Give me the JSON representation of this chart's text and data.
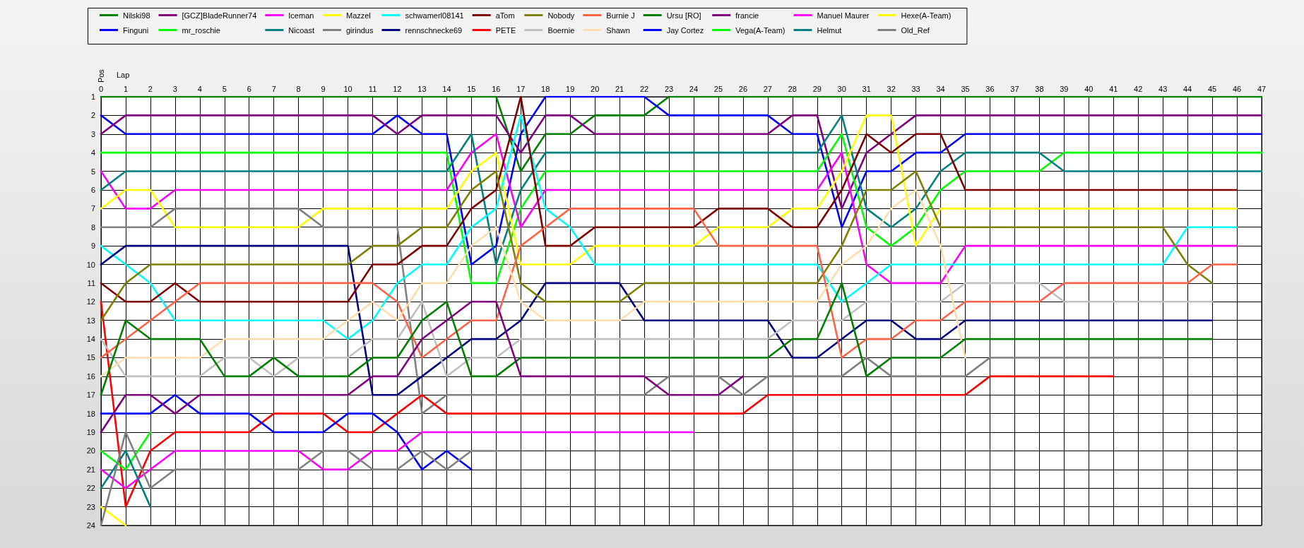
{
  "chart_data": {
    "type": "line",
    "xlabel": "Lap",
    "ylabel": "Pos",
    "x": [
      0,
      1,
      2,
      3,
      4,
      5,
      6,
      7,
      8,
      9,
      10,
      11,
      12,
      13,
      14,
      15,
      16,
      17,
      18,
      19,
      20,
      21,
      22,
      23,
      24,
      25,
      26,
      27,
      28,
      29,
      30,
      31,
      32,
      33,
      34,
      35,
      36,
      37,
      38,
      39,
      40,
      41,
      42,
      43,
      44,
      45,
      46,
      47
    ],
    "xlim": [
      0,
      47
    ],
    "xticks": [
      0,
      1,
      2,
      3,
      4,
      5,
      6,
      7,
      8,
      9,
      10,
      11,
      12,
      13,
      14,
      15,
      16,
      17,
      18,
      19,
      20,
      21,
      22,
      23,
      24,
      25,
      26,
      27,
      28,
      29,
      30,
      31,
      32,
      33,
      34,
      35,
      36,
      37,
      38,
      39,
      40,
      41,
      42,
      43,
      44,
      45,
      46,
      47
    ],
    "ylim": [
      24,
      1
    ],
    "yticks": [
      1,
      2,
      3,
      4,
      5,
      6,
      7,
      8,
      9,
      10,
      11,
      12,
      13,
      14,
      15,
      16,
      17,
      18,
      19,
      20,
      21,
      22,
      23,
      24
    ],
    "grid": true,
    "legend": "top",
    "marker": "none",
    "line_style": "solid",
    "series": [
      {
        "name": "Nilski98",
        "color": "#008000",
        "values": [
          1,
          1,
          1,
          1,
          1,
          1,
          1,
          1,
          1,
          1,
          1,
          1,
          1,
          1,
          1,
          1,
          1,
          5,
          3,
          3,
          2,
          2,
          2,
          1,
          1,
          1,
          1,
          1,
          1,
          1,
          1,
          1,
          1,
          1,
          1,
          1,
          1,
          1,
          1,
          1,
          1,
          1,
          1,
          1,
          1,
          1,
          1,
          1
        ]
      },
      {
        "name": "Finguni",
        "color": "#0000ff",
        "values": [
          2,
          3,
          3,
          3,
          3,
          3,
          3,
          3,
          3,
          3,
          3,
          3,
          2,
          3,
          3,
          10,
          9,
          3,
          1,
          1,
          1,
          1,
          1,
          2,
          2,
          2,
          2,
          2,
          3,
          3,
          8,
          5,
          5,
          4,
          4,
          3,
          3,
          3,
          3,
          3,
          3,
          3,
          3,
          3,
          3,
          3,
          3,
          3
        ]
      },
      {
        "name": "[GCZ]BladeRunner74",
        "color": "#800080",
        "values": [
          3,
          2,
          2,
          2,
          2,
          2,
          2,
          2,
          2,
          2,
          2,
          2,
          3,
          2,
          2,
          2,
          2,
          4,
          2,
          2,
          3,
          3,
          3,
          3,
          3,
          3,
          3,
          3,
          2,
          2,
          7,
          4,
          3,
          2,
          2,
          2,
          2,
          2,
          2,
          2,
          2,
          2,
          2,
          2,
          2,
          2,
          2,
          2
        ]
      },
      {
        "name": "mr_roschie",
        "color": "#00ff00",
        "values": [
          4,
          4,
          4,
          4,
          4,
          4,
          4,
          4,
          4,
          4,
          4,
          4,
          4,
          4,
          4,
          11,
          11,
          7,
          5,
          5,
          5,
          5,
          5,
          5,
          5,
          5,
          5,
          5,
          5,
          5,
          3,
          8,
          9,
          8,
          6,
          5,
          5,
          5,
          5,
          4,
          4,
          4,
          4,
          4,
          4,
          4,
          4,
          4
        ]
      },
      {
        "name": "Iceman",
        "color": "#ff00ff",
        "values": [
          5,
          7,
          7,
          6,
          6,
          6,
          6,
          6,
          6,
          6,
          6,
          6,
          6,
          6,
          6,
          4,
          3,
          8,
          6,
          6,
          6,
          6,
          6,
          6,
          6,
          6,
          6,
          6,
          6,
          6,
          4,
          10,
          11,
          11,
          11,
          9,
          9,
          9,
          9,
          9,
          9,
          9,
          9,
          9,
          9,
          9,
          9,
          null
        ]
      },
      {
        "name": "Nicoast",
        "color": "#008080",
        "values": [
          6,
          5,
          5,
          5,
          5,
          5,
          5,
          5,
          5,
          5,
          5,
          5,
          5,
          5,
          5,
          3,
          10,
          6,
          4,
          4,
          4,
          4,
          4,
          4,
          4,
          4,
          4,
          4,
          4,
          4,
          2,
          7,
          8,
          7,
          5,
          4,
          4,
          4,
          4,
          5,
          5,
          5,
          5,
          5,
          5,
          5,
          5,
          5
        ]
      },
      {
        "name": "Mazzel",
        "color": "#ffff00",
        "values": [
          7,
          6,
          6,
          8,
          8,
          8,
          8,
          8,
          8,
          7,
          7,
          7,
          7,
          7,
          7,
          5,
          4,
          10,
          10,
          10,
          9,
          9,
          9,
          9,
          9,
          8,
          8,
          8,
          7,
          7,
          5,
          2,
          2,
          9,
          7,
          7,
          7,
          7,
          7,
          7,
          7,
          7,
          7,
          7,
          7,
          7,
          7,
          null
        ]
      },
      {
        "name": "girindus",
        "color": "#808080",
        "values": [
          8,
          8,
          8,
          7,
          7,
          7,
          7,
          7,
          7,
          8,
          8,
          8,
          8,
          18,
          17,
          17,
          17,
          17,
          17,
          17,
          17,
          17,
          17,
          16,
          16,
          16,
          17,
          16,
          16,
          16,
          16,
          15,
          16,
          16,
          16,
          16,
          15,
          15,
          15,
          15,
          15,
          15,
          15,
          15,
          null,
          null,
          null,
          null
        ]
      },
      {
        "name": "schwamerl08141",
        "color": "#00ffff",
        "values": [
          9,
          10,
          11,
          13,
          13,
          13,
          13,
          13,
          13,
          13,
          14,
          13,
          11,
          10,
          10,
          8,
          7,
          2,
          7,
          8,
          10,
          10,
          10,
          10,
          10,
          10,
          10,
          10,
          10,
          10,
          12,
          11,
          10,
          10,
          10,
          10,
          10,
          10,
          10,
          10,
          10,
          10,
          10,
          10,
          8,
          8,
          8,
          null
        ]
      },
      {
        "name": "rennschnecke69",
        "color": "#000080",
        "values": [
          10,
          9,
          9,
          9,
          9,
          9,
          9,
          9,
          9,
          9,
          9,
          17,
          17,
          16,
          15,
          14,
          14,
          13,
          11,
          11,
          11,
          11,
          13,
          13,
          13,
          13,
          13,
          13,
          15,
          15,
          14,
          13,
          13,
          14,
          14,
          13,
          13,
          13,
          13,
          13,
          13,
          13,
          13,
          13,
          13,
          13,
          null,
          null
        ]
      },
      {
        "name": "aTom",
        "color": "#800000",
        "values": [
          11,
          12,
          12,
          11,
          12,
          12,
          12,
          12,
          12,
          12,
          12,
          10,
          10,
          9,
          9,
          7,
          6,
          1,
          9,
          9,
          8,
          8,
          8,
          8,
          8,
          7,
          7,
          7,
          8,
          8,
          6,
          3,
          4,
          3,
          3,
          6,
          6,
          6,
          6,
          6,
          6,
          6,
          6,
          6,
          6,
          6,
          6,
          null
        ]
      },
      {
        "name": "PETE",
        "color": "#ff0000",
        "values": [
          12,
          23,
          20,
          19,
          19,
          19,
          19,
          18,
          18,
          18,
          19,
          19,
          18,
          17,
          18,
          18,
          18,
          18,
          18,
          18,
          18,
          18,
          18,
          18,
          18,
          18,
          18,
          17,
          17,
          17,
          17,
          17,
          17,
          17,
          17,
          17,
          16,
          16,
          16,
          16,
          16,
          16,
          null,
          null,
          null,
          null,
          null,
          null
        ]
      },
      {
        "name": "Nobody",
        "color": "#808000",
        "values": [
          13,
          11,
          10,
          10,
          10,
          10,
          10,
          10,
          10,
          10,
          10,
          9,
          9,
          8,
          8,
          6,
          5,
          11,
          12,
          12,
          12,
          12,
          11,
          11,
          11,
          11,
          11,
          11,
          11,
          11,
          9,
          6,
          6,
          5,
          8,
          8,
          8,
          8,
          8,
          8,
          8,
          8,
          8,
          8,
          10,
          11,
          null,
          null
        ]
      },
      {
        "name": "Boernie",
        "color": "#c0c0c0",
        "values": [
          14,
          16,
          16,
          16,
          16,
          15,
          15,
          16,
          15,
          15,
          15,
          14,
          14,
          12,
          16,
          15,
          15,
          14,
          14,
          14,
          14,
          14,
          14,
          14,
          14,
          14,
          14,
          14,
          13,
          13,
          13,
          12,
          12,
          12,
          12,
          11,
          11,
          11,
          11,
          12,
          12,
          12,
          12,
          12,
          12,
          12,
          null,
          null
        ]
      },
      {
        "name": "Burnie J",
        "color": "#ff6347",
        "values": [
          15,
          14,
          13,
          12,
          11,
          11,
          11,
          11,
          11,
          11,
          11,
          11,
          12,
          15,
          14,
          13,
          13,
          9,
          8,
          7,
          7,
          7,
          7,
          7,
          7,
          9,
          9,
          9,
          9,
          9,
          15,
          14,
          14,
          13,
          13,
          12,
          12,
          12,
          12,
          11,
          11,
          11,
          11,
          11,
          11,
          10,
          10,
          null
        ]
      },
      {
        "name": "Shawn",
        "color": "#ffdead",
        "values": [
          16,
          15,
          15,
          15,
          15,
          14,
          14,
          14,
          14,
          14,
          13,
          12,
          13,
          11,
          11,
          9,
          8,
          12,
          13,
          13,
          13,
          13,
          12,
          12,
          12,
          12,
          12,
          12,
          12,
          12,
          10,
          9,
          7,
          6,
          9,
          15,
          null,
          null,
          null,
          null,
          null,
          null,
          null,
          null,
          null,
          null,
          null,
          null
        ]
      },
      {
        "name": "Ursu [RO]",
        "color": "#008000",
        "values": [
          17,
          13,
          14,
          14,
          14,
          16,
          16,
          15,
          16,
          16,
          16,
          15,
          15,
          13,
          12,
          16,
          16,
          15,
          15,
          15,
          15,
          15,
          15,
          15,
          15,
          15,
          15,
          15,
          14,
          14,
          11,
          16,
          15,
          15,
          15,
          14,
          14,
          14,
          14,
          14,
          14,
          14,
          14,
          14,
          14,
          14,
          null,
          null
        ]
      },
      {
        "name": "Jay Cortez",
        "color": "#0000ff",
        "values": [
          18,
          18,
          18,
          17,
          18,
          18,
          18,
          19,
          19,
          19,
          18,
          18,
          19,
          21,
          20,
          21,
          null,
          null,
          null,
          null,
          null,
          null,
          null,
          null,
          null,
          null,
          null,
          null,
          null,
          null,
          null,
          null,
          null,
          null,
          null,
          null,
          null,
          null,
          null,
          null,
          null,
          null,
          null,
          null,
          null,
          null,
          null,
          null
        ]
      },
      {
        "name": "francie",
        "color": "#800080",
        "values": [
          19,
          17,
          17,
          18,
          17,
          17,
          17,
          17,
          17,
          17,
          17,
          16,
          16,
          14,
          13,
          12,
          12,
          16,
          16,
          16,
          16,
          16,
          16,
          17,
          17,
          17,
          16,
          null,
          null,
          null,
          null,
          null,
          null,
          null,
          null,
          null,
          null,
          null,
          null,
          null,
          null,
          null,
          null,
          null,
          null,
          null,
          null,
          null
        ]
      },
      {
        "name": "Vega(A-Team)",
        "color": "#00ff00",
        "values": [
          20,
          21,
          19,
          null,
          null,
          null,
          null,
          null,
          null,
          null,
          null,
          null,
          null,
          null,
          null,
          null,
          null,
          null,
          null,
          null,
          null,
          null,
          null,
          null,
          null,
          null,
          null,
          null,
          null,
          null,
          null,
          null,
          null,
          null,
          null,
          null,
          null,
          null,
          null,
          null,
          null,
          null,
          null,
          null,
          null,
          null,
          null,
          null
        ]
      },
      {
        "name": "Manuel Maurer",
        "color": "#ff00ff",
        "values": [
          21,
          22,
          21,
          20,
          20,
          20,
          20,
          20,
          20,
          21,
          21,
          20,
          20,
          19,
          19,
          19,
          19,
          19,
          19,
          19,
          19,
          19,
          19,
          19,
          19,
          null,
          null,
          null,
          null,
          null,
          null,
          null,
          null,
          null,
          null,
          null,
          null,
          null,
          null,
          null,
          null,
          null,
          null,
          null,
          null,
          null,
          null,
          null
        ]
      },
      {
        "name": "Helmut",
        "color": "#008080",
        "values": [
          22,
          20,
          23,
          null,
          null,
          null,
          null,
          null,
          null,
          null,
          null,
          null,
          null,
          null,
          null,
          null,
          null,
          null,
          null,
          null,
          null,
          null,
          null,
          null,
          null,
          null,
          null,
          null,
          null,
          null,
          null,
          null,
          null,
          null,
          null,
          null,
          null,
          null,
          null,
          null,
          null,
          null,
          null,
          null,
          null,
          null,
          null,
          null
        ]
      },
      {
        "name": "Hexe(A-Team)",
        "color": "#ffff00",
        "values": [
          23,
          24,
          null,
          null,
          null,
          null,
          null,
          null,
          null,
          null,
          null,
          null,
          null,
          null,
          null,
          null,
          null,
          null,
          null,
          null,
          null,
          null,
          null,
          null,
          null,
          null,
          null,
          null,
          null,
          null,
          null,
          null,
          null,
          null,
          null,
          null,
          null,
          null,
          null,
          null,
          null,
          null,
          null,
          null,
          null,
          null,
          null,
          null
        ]
      },
      {
        "name": "Old_Ref",
        "color": "#808080",
        "values": [
          24,
          19,
          22,
          21,
          21,
          21,
          21,
          21,
          21,
          20,
          20,
          21,
          21,
          20,
          21,
          20,
          20,
          null,
          null,
          null,
          null,
          null,
          null,
          null,
          null,
          null,
          null,
          null,
          null,
          null,
          null,
          null,
          null,
          null,
          null,
          null,
          null,
          null,
          null,
          null,
          null,
          null,
          null,
          null,
          null,
          null,
          null,
          null
        ]
      }
    ]
  }
}
